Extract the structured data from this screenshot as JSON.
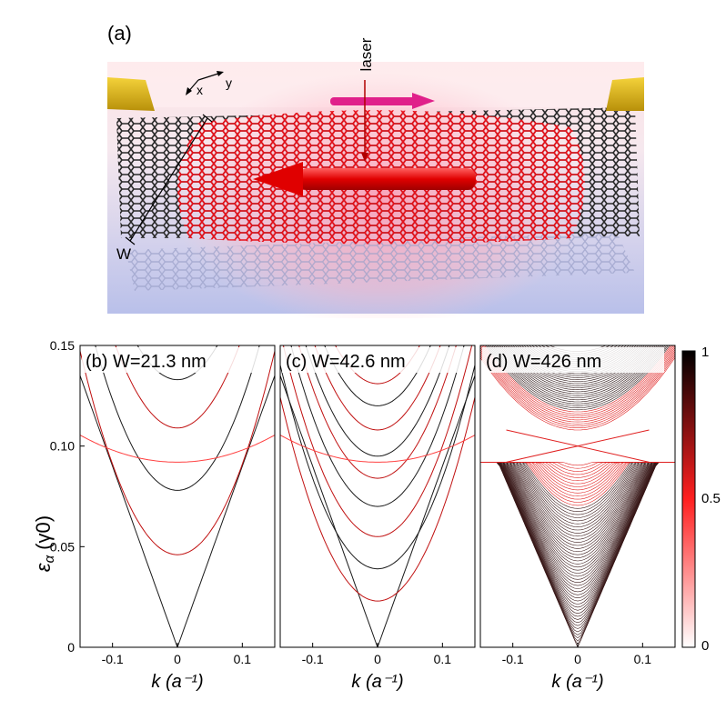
{
  "panel_a": {
    "label": "(a)",
    "laser_label": "laser",
    "axis_x_label": "x",
    "axis_y_label": "y",
    "width_label": "W"
  },
  "y_axis_label_main": "ε",
  "y_axis_label_sub": "α",
  "y_axis_label_unit": "(γ0)",
  "x_axis_label": "k (a⁻¹)",
  "colorbar": {
    "ticks": [
      "1",
      "0.5",
      "0"
    ],
    "colors": [
      "#000000",
      "#ff2020",
      "#ffffff"
    ]
  },
  "chart_data": [
    {
      "type": "line",
      "panel": "(b)",
      "title": "W=21.3 nm",
      "xlim": [
        -0.15,
        0.15
      ],
      "ylim": [
        0,
        0.15
      ],
      "xticks": [
        "-0.1",
        "0",
        "0.1"
      ],
      "yticks": [
        "0",
        "0.05",
        "0.10",
        "0.15"
      ],
      "band_minima": [
        0.0,
        0.046,
        0.078,
        0.109,
        0.133
      ],
      "flat_band": 0.092
    },
    {
      "type": "line",
      "panel": "(c)",
      "title": "W=42.6 nm",
      "xlim": [
        -0.15,
        0.15
      ],
      "ylim": [
        0,
        0.15
      ],
      "xticks": [
        "-0.1",
        "0",
        "0.1"
      ],
      "band_minima": [
        0.0,
        0.023,
        0.039,
        0.055,
        0.07,
        0.084,
        0.095,
        0.108,
        0.12,
        0.131
      ],
      "flat_band": 0.092
    },
    {
      "type": "line",
      "panel": "(d)",
      "title": "W=426 nm",
      "xlim": [
        -0.15,
        0.15
      ],
      "ylim": [
        0,
        0.15
      ],
      "xticks": [
        "-0.1",
        "0",
        "0.1"
      ],
      "lower_cone_top": 0.092,
      "upper_cone_bottom": 0.108,
      "crossing_energy": 0.1
    }
  ]
}
